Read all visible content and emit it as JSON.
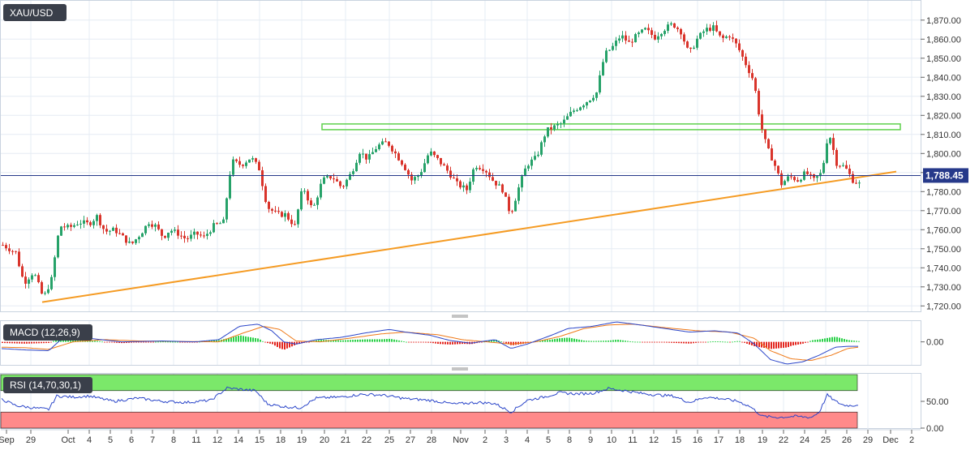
{
  "chart_data": [
    {
      "type": "candlestick",
      "title": "XAU/USD",
      "ylim": [
        1718,
        1878
      ],
      "y_ticks": [
        {
          "v": 1720,
          "label": "1,720.00"
        },
        {
          "v": 1730,
          "label": "1,730.00"
        },
        {
          "v": 1740,
          "label": "1,740.00"
        },
        {
          "v": 1750,
          "label": "1,750.00"
        },
        {
          "v": 1760,
          "label": "1,760.00"
        },
        {
          "v": 1770,
          "label": "1,770.00"
        },
        {
          "v": 1780,
          "label": "1,780.00"
        },
        {
          "v": 1790,
          "label": "1,790.00"
        },
        {
          "v": 1800,
          "label": "1,800.00"
        },
        {
          "v": 1810,
          "label": "1,810.00"
        },
        {
          "v": 1820,
          "label": "1,820.00"
        },
        {
          "v": 1830,
          "label": "1,830.00"
        },
        {
          "v": 1840,
          "label": "1,840.00"
        },
        {
          "v": 1850,
          "label": "1,850.00"
        },
        {
          "v": 1860,
          "label": "1,860.00"
        },
        {
          "v": 1870,
          "label": "1,870.00"
        }
      ],
      "current_price": {
        "value": 1788.45,
        "label": "1,788.45"
      },
      "resistance_zone": {
        "low": 1812.5,
        "high": 1815.5
      },
      "trendline": {
        "from": {
          "x": 52,
          "y": 1722
        },
        "to": {
          "x": 1105,
          "y": 1790.5
        }
      },
      "x_ticks": [
        "Sep",
        "29",
        "Oct",
        "4",
        "5",
        "6",
        "7",
        "8",
        "11",
        "12",
        "14",
        "15",
        "18",
        "19",
        "20",
        "21",
        "22",
        "25",
        "27",
        "28",
        "Nov",
        "2",
        "3",
        "4",
        "5",
        "8",
        "9",
        "10",
        "11",
        "12",
        "15",
        "16",
        "17",
        "18",
        "19",
        "22",
        "24",
        "25",
        "26",
        "29",
        "Dec",
        "2"
      ],
      "x_range": [
        0,
        1135
      ],
      "colors": {
        "up": "#26a269",
        "down": "#d9342b",
        "trend": "#f59b23",
        "zone": "#5ed04c",
        "price_line": "#26398a"
      },
      "candle_width": 3,
      "knots": [
        [
          2,
          1752
        ],
        [
          18,
          1748
        ],
        [
          28,
          1732
        ],
        [
          40,
          1738
        ],
        [
          52,
          1724
        ],
        [
          62,
          1734
        ],
        [
          72,
          1762
        ],
        [
          84,
          1761
        ],
        [
          96,
          1764
        ],
        [
          108,
          1763
        ],
        [
          118,
          1767
        ],
        [
          128,
          1759
        ],
        [
          140,
          1760
        ],
        [
          150,
          1756
        ],
        [
          160,
          1752
        ],
        [
          172,
          1758
        ],
        [
          182,
          1764
        ],
        [
          190,
          1762
        ],
        [
          200,
          1756
        ],
        [
          208,
          1760
        ],
        [
          218,
          1758
        ],
        [
          228,
          1755
        ],
        [
          240,
          1758
        ],
        [
          250,
          1756
        ],
        [
          262,
          1762
        ],
        [
          274,
          1764
        ],
        [
          284,
          1796
        ],
        [
          296,
          1794
        ],
        [
          308,
          1798
        ],
        [
          318,
          1792
        ],
        [
          328,
          1772
        ],
        [
          340,
          1768
        ],
        [
          350,
          1768
        ],
        [
          362,
          1762
        ],
        [
          372,
          1783
        ],
        [
          384,
          1770
        ],
        [
          396,
          1786
        ],
        [
          408,
          1788
        ],
        [
          420,
          1782
        ],
        [
          432,
          1790
        ],
        [
          442,
          1801
        ],
        [
          452,
          1797
        ],
        [
          464,
          1804
        ],
        [
          476,
          1806
        ],
        [
          486,
          1800
        ],
        [
          496,
          1794
        ],
        [
          506,
          1786
        ],
        [
          516,
          1789
        ],
        [
          528,
          1801
        ],
        [
          540,
          1796
        ],
        [
          552,
          1790
        ],
        [
          562,
          1784
        ],
        [
          574,
          1781
        ],
        [
          584,
          1794
        ],
        [
          596,
          1792
        ],
        [
          606,
          1786
        ],
        [
          618,
          1781
        ],
        [
          628,
          1768
        ],
        [
          638,
          1782
        ],
        [
          648,
          1794
        ],
        [
          660,
          1798
        ],
        [
          672,
          1812
        ],
        [
          682,
          1814
        ],
        [
          692,
          1816
        ],
        [
          704,
          1822
        ],
        [
          714,
          1825
        ],
        [
          724,
          1828
        ],
        [
          734,
          1832
        ],
        [
          744,
          1852
        ],
        [
          754,
          1856
        ],
        [
          764,
          1862
        ],
        [
          774,
          1858
        ],
        [
          784,
          1862
        ],
        [
          794,
          1865
        ],
        [
          806,
          1861
        ],
        [
          816,
          1865
        ],
        [
          828,
          1868
        ],
        [
          838,
          1864
        ],
        [
          848,
          1852
        ],
        [
          858,
          1860
        ],
        [
          868,
          1865
        ],
        [
          878,
          1866
        ],
        [
          888,
          1860
        ],
        [
          898,
          1862
        ],
        [
          908,
          1856
        ],
        [
          918,
          1847
        ],
        [
          928,
          1838
        ],
        [
          936,
          1816
        ],
        [
          944,
          1803
        ],
        [
          952,
          1796
        ],
        [
          962,
          1784
        ],
        [
          972,
          1788
        ],
        [
          982,
          1786
        ],
        [
          992,
          1790
        ],
        [
          1002,
          1786
        ],
        [
          1012,
          1790
        ],
        [
          1020,
          1812
        ],
        [
          1030,
          1795
        ],
        [
          1040,
          1793
        ],
        [
          1050,
          1786
        ],
        [
          1058,
          1784
        ]
      ],
      "down_from": [
        {
          "x0": 916,
          "x1": 968
        },
        {
          "x0": 1024,
          "x1": 1060
        }
      ]
    },
    {
      "type": "line",
      "title": "MACD (12,26,9)",
      "ylim": [
        -0.5,
        0.45
      ],
      "y_ticks": [
        {
          "v": 0,
          "label": "0.00"
        }
      ],
      "series": [],
      "colors": {
        "macd": "#2a45c9",
        "signal": "#ef7a19",
        "hist_up": "#2cd14a",
        "hist_down": "#e3261f"
      },
      "macd_knots": [
        [
          0,
          -0.15
        ],
        [
          30,
          -0.18
        ],
        [
          60,
          -0.2
        ],
        [
          75,
          0.05
        ],
        [
          110,
          0.08
        ],
        [
          150,
          0.0
        ],
        [
          200,
          0.02
        ],
        [
          240,
          0.0
        ],
        [
          270,
          0.05
        ],
        [
          295,
          0.35
        ],
        [
          318,
          0.4
        ],
        [
          335,
          0.25
        ],
        [
          350,
          0.0
        ],
        [
          365,
          -0.05
        ],
        [
          390,
          0.05
        ],
        [
          420,
          0.1
        ],
        [
          450,
          0.2
        ],
        [
          480,
          0.28
        ],
        [
          500,
          0.22
        ],
        [
          530,
          0.15
        ],
        [
          555,
          0.03
        ],
        [
          580,
          -0.03
        ],
        [
          610,
          0.05
        ],
        [
          630,
          -0.15
        ],
        [
          650,
          -0.05
        ],
        [
          680,
          0.15
        ],
        [
          700,
          0.3
        ],
        [
          730,
          0.35
        ],
        [
          760,
          0.45
        ],
        [
          790,
          0.38
        ],
        [
          820,
          0.3
        ],
        [
          850,
          0.22
        ],
        [
          880,
          0.25
        ],
        [
          910,
          0.2
        ],
        [
          930,
          -0.05
        ],
        [
          950,
          -0.4
        ],
        [
          970,
          -0.5
        ],
        [
          990,
          -0.45
        ],
        [
          1010,
          -0.3
        ],
        [
          1030,
          -0.12
        ],
        [
          1045,
          -0.1
        ],
        [
          1058,
          -0.1
        ]
      ],
      "signal_knots": [
        [
          0,
          -0.12
        ],
        [
          30,
          -0.13
        ],
        [
          60,
          -0.17
        ],
        [
          90,
          0.0
        ],
        [
          130,
          0.05
        ],
        [
          170,
          0.02
        ],
        [
          220,
          0.01
        ],
        [
          270,
          0.0
        ],
        [
          300,
          0.2
        ],
        [
          325,
          0.35
        ],
        [
          345,
          0.28
        ],
        [
          365,
          0.02
        ],
        [
          395,
          0.0
        ],
        [
          430,
          0.08
        ],
        [
          470,
          0.18
        ],
        [
          500,
          0.22
        ],
        [
          540,
          0.16
        ],
        [
          570,
          0.05
        ],
        [
          600,
          0.0
        ],
        [
          630,
          -0.05
        ],
        [
          660,
          0.0
        ],
        [
          690,
          0.12
        ],
        [
          720,
          0.3
        ],
        [
          750,
          0.38
        ],
        [
          780,
          0.4
        ],
        [
          820,
          0.32
        ],
        [
          860,
          0.25
        ],
        [
          900,
          0.22
        ],
        [
          930,
          0.08
        ],
        [
          950,
          -0.2
        ],
        [
          975,
          -0.38
        ],
        [
          1000,
          -0.42
        ],
        [
          1025,
          -0.3
        ],
        [
          1045,
          -0.15
        ],
        [
          1058,
          -0.12
        ]
      ]
    },
    {
      "type": "line",
      "title": "RSI (14,70,30,1)",
      "ylim": [
        0,
        100
      ],
      "y_ticks": [
        {
          "v": 0,
          "label": "0.00"
        },
        {
          "v": 50,
          "label": "50.00"
        }
      ],
      "overbought": 70,
      "oversold": 30,
      "colors": {
        "line": "#2a45c9",
        "ob_zone": "#7be86a",
        "os_zone": "#ff8a8a"
      },
      "knots": [
        [
          0,
          55
        ],
        [
          20,
          42
        ],
        [
          40,
          38
        ],
        [
          60,
          35
        ],
        [
          70,
          60
        ],
        [
          90,
          58
        ],
        [
          110,
          60
        ],
        [
          140,
          50
        ],
        [
          170,
          56
        ],
        [
          200,
          50
        ],
        [
          230,
          48
        ],
        [
          260,
          52
        ],
        [
          280,
          75
        ],
        [
          300,
          72
        ],
        [
          315,
          70
        ],
        [
          330,
          45
        ],
        [
          350,
          40
        ],
        [
          370,
          38
        ],
        [
          390,
          56
        ],
        [
          420,
          58
        ],
        [
          445,
          63
        ],
        [
          470,
          62
        ],
        [
          500,
          55
        ],
        [
          530,
          52
        ],
        [
          560,
          45
        ],
        [
          590,
          48
        ],
        [
          610,
          46
        ],
        [
          630,
          30
        ],
        [
          650,
          52
        ],
        [
          670,
          58
        ],
        [
          690,
          66
        ],
        [
          710,
          64
        ],
        [
          730,
          65
        ],
        [
          750,
          74
        ],
        [
          770,
          70
        ],
        [
          790,
          65
        ],
        [
          810,
          62
        ],
        [
          830,
          60
        ],
        [
          850,
          48
        ],
        [
          870,
          58
        ],
        [
          890,
          55
        ],
        [
          910,
          50
        ],
        [
          925,
          40
        ],
        [
          940,
          22
        ],
        [
          960,
          20
        ],
        [
          980,
          22
        ],
        [
          1000,
          20
        ],
        [
          1010,
          30
        ],
        [
          1020,
          62
        ],
        [
          1030,
          50
        ],
        [
          1040,
          43
        ],
        [
          1050,
          42
        ],
        [
          1058,
          44
        ]
      ]
    }
  ],
  "panel_labels": {
    "price": "XAU/USD",
    "macd": "MACD (12,26,9)",
    "rsi": "RSI (14,70,30,1)"
  }
}
